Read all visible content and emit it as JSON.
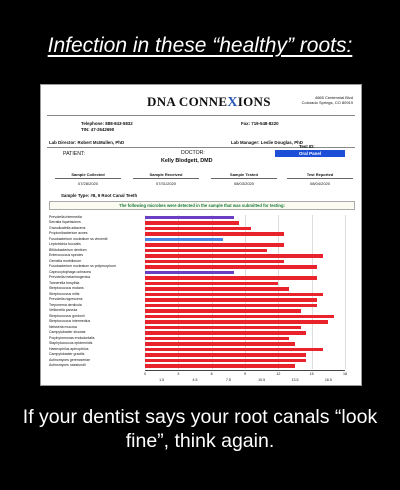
{
  "headline": "Infection in these “healthy” roots:",
  "caption": "If your dentist says your root canals “look fine”, think again.",
  "report": {
    "logo_prefix": "DNA CONNE",
    "logo_x": "X",
    "logo_suffix": "IONS",
    "address_line1": "4665 Centennial Blvd",
    "address_line2": "Colorado Springs, CO 80919",
    "telephone": "Telephone: 888-843-5832",
    "tin": "TIN: 47-2642690",
    "fax": "Fax: 719-548-8220",
    "lab_director": "Lab Director: Robert McMullen, PhD",
    "lab_manager": "Lab Manager: Leslie Douglas, PhD",
    "patient_label": "PATIENT:",
    "doctor_label": "DOCTOR:",
    "doctor_name": "Kelly Blodgett, DMD",
    "test_id_label": "Test ID:",
    "test_id_value": "Oral Panel",
    "dates": [
      {
        "label": "Sample Collected",
        "value": "07/28/2020"
      },
      {
        "label": "Sample Received",
        "value": "07/31/2020"
      },
      {
        "label": "Sample Tested",
        "value": "08/03/2020"
      },
      {
        "label": "Test Reported",
        "value": "08/04/2020"
      }
    ],
    "sample_type": "Sample Type: #8, 9 Root Canal Teeth",
    "detected_note": "The following microbes were detected in the sample that was submitted for testing:"
  },
  "chart_data": {
    "type": "bar",
    "orientation": "horizontal",
    "categories": [
      "Prevotella intermedia",
      "Serratia liquefaciens",
      "Granulicatella adiacens",
      "Propionibacterium acnes",
      "Fusobacterium nucleatum ss vincentii",
      "Leptotrichia buccalis",
      "Bifidobacterium dentium",
      "Enterococcus species",
      "Gemella morbillorum",
      "Fusobacterium nucleatum ss polymorphum",
      "Capnocytophaga ochracea",
      "Prevotella melaninogenica",
      "Tannerella forsythia",
      "Streptococcus mutans",
      "Streptococcus mitis",
      "Prevotella nigrescens",
      "Treponema denticola",
      "Veillonella parvula",
      "Streptococcus gordonii",
      "Streptococcus intermedius",
      "Neisseria mucosa",
      "Campylobacter showae",
      "Porphyromonas endodontalis",
      "Staphylococcus epidermidis",
      "Haemophilus aphrophilus",
      "Campylobacter gracilis",
      "Actinomyces gerencseriae",
      "Actinomyces naeslundii"
    ],
    "values": [
      8,
      8.5,
      9.5,
      12.5,
      7,
      12.5,
      11,
      16,
      12.5,
      15.5,
      8,
      15.5,
      12,
      13,
      16,
      15.5,
      15.5,
      14,
      17,
      16.5,
      14,
      14.5,
      13,
      13.5,
      16,
      14.5,
      14.5,
      13.5
    ],
    "bar_colors": [
      "#6b3fc4",
      "#e8232b",
      "#e8232b",
      "#e8232b",
      "#4a86e8",
      "#e8232b",
      "#e8232b",
      "#e8232b",
      "#e8232b",
      "#e8232b",
      "#6b3fc4",
      "#e8232b",
      "#e8232b",
      "#e8232b",
      "#e8232b",
      "#e8232b",
      "#e8232b",
      "#e8232b",
      "#e8232b",
      "#e8232b",
      "#e8232b",
      "#e8232b",
      "#e8232b",
      "#e8232b",
      "#e8232b",
      "#e8232b",
      "#e8232b",
      "#e8232b"
    ],
    "xlim": [
      0,
      18
    ],
    "major_ticks": [
      "0",
      "3",
      "6",
      "9",
      "12",
      "15",
      "18"
    ],
    "minor_ticks": [
      "1.5",
      "4.5",
      "7.5",
      "10.5",
      "13.5",
      "16.5"
    ],
    "grid": true
  }
}
